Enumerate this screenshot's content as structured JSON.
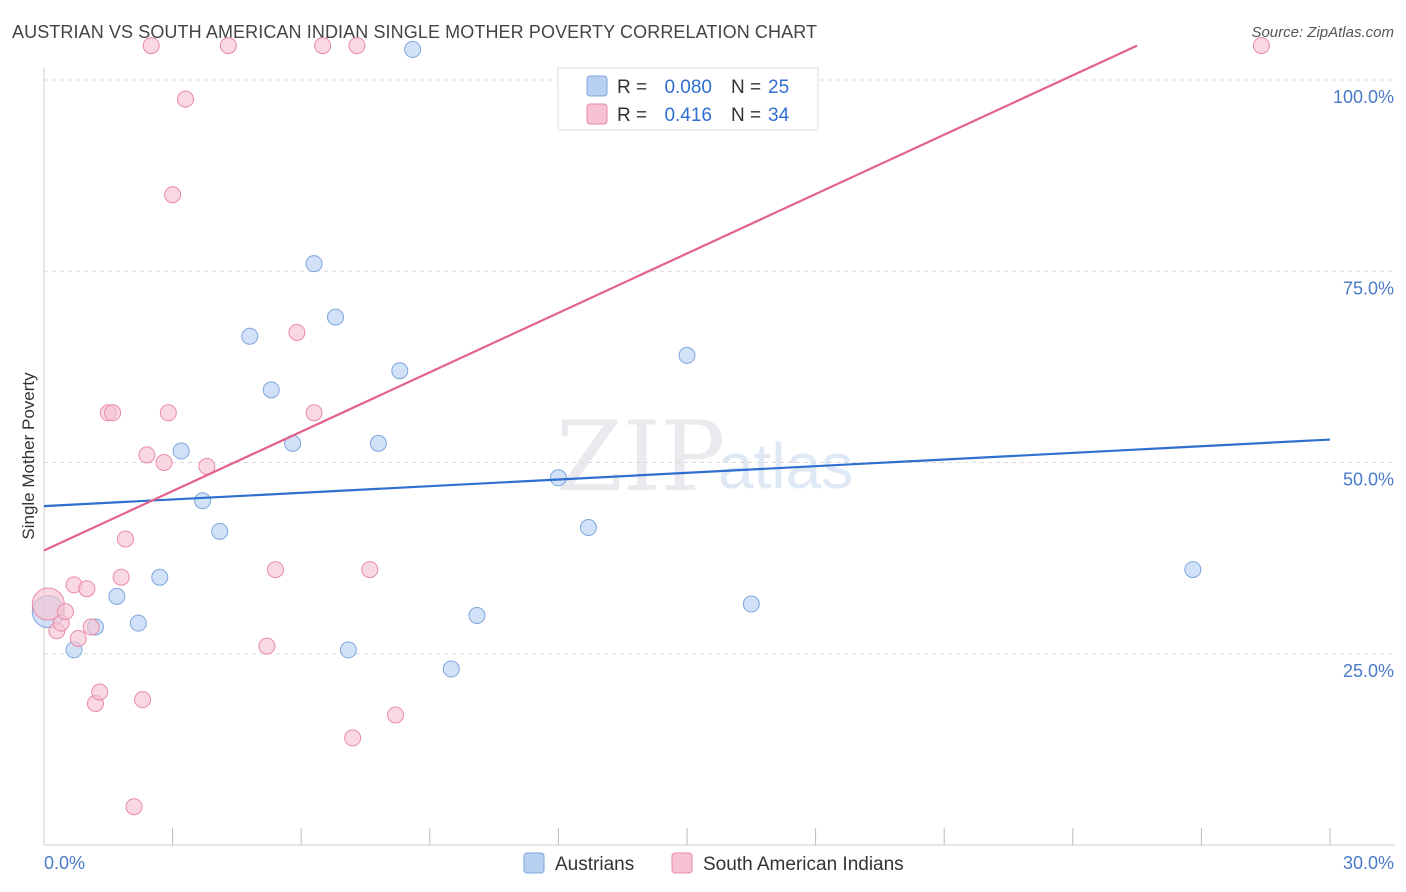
{
  "title": "AUSTRIAN VS SOUTH AMERICAN INDIAN SINGLE MOTHER POVERTY CORRELATION CHART",
  "source": "Source: ZipAtlas.com",
  "watermark": {
    "zip": "ZIP",
    "atlas": "atlas"
  },
  "colors": {
    "austrians_fill": "#b8d1f2",
    "austrians_stroke": "#7ea6de",
    "austrians_line": "#2e6fd0",
    "sai_fill": "#f7c3d2",
    "sai_stroke": "#e98aa8",
    "sai_line": "#e2628a",
    "axis_label": "#4a7ac8",
    "grid": "#d9d9d9"
  },
  "legend": {
    "r_label": "R =",
    "n_label": "N =",
    "rows": [
      {
        "r": "0.080",
        "n": "25"
      },
      {
        "r": "0.416",
        "n": "34"
      }
    ]
  },
  "chart_data": {
    "type": "scatter",
    "title": "AUSTRIAN VS SOUTH AMERICAN INDIAN SINGLE MOTHER POVERTY CORRELATION CHART",
    "xlabel": "",
    "ylabel": "Single Mother Poverty",
    "xlim": [
      0,
      30
    ],
    "ylim": [
      0,
      100
    ],
    "x_tick_labels": [
      "0.0%",
      "30.0%"
    ],
    "y_tick_values": [
      25,
      50,
      75,
      100
    ],
    "y_tick_labels": [
      "25.0%",
      "50.0%",
      "75.0%",
      "100.0%"
    ],
    "grid": "horizontal dashed",
    "legend_placement": "top-center",
    "series": [
      {
        "name": "Austrians",
        "r": 0.08,
        "n": 25,
        "trend": {
          "x": [
            0,
            30
          ],
          "y": [
            44.3,
            53.0
          ]
        },
        "points": [
          {
            "x": 0.1,
            "y": 30.5,
            "size": "large"
          },
          {
            "x": 0.7,
            "y": 25.5
          },
          {
            "x": 1.2,
            "y": 28.5
          },
          {
            "x": 1.7,
            "y": 32.5
          },
          {
            "x": 2.2,
            "y": 29.0
          },
          {
            "x": 2.7,
            "y": 35.0
          },
          {
            "x": 3.2,
            "y": 51.5
          },
          {
            "x": 3.7,
            "y": 45.0
          },
          {
            "x": 4.1,
            "y": 41.0
          },
          {
            "x": 4.8,
            "y": 66.5
          },
          {
            "x": 5.3,
            "y": 59.5
          },
          {
            "x": 5.8,
            "y": 52.5
          },
          {
            "x": 6.3,
            "y": 76.0
          },
          {
            "x": 6.8,
            "y": 69.0
          },
          {
            "x": 7.1,
            "y": 25.5
          },
          {
            "x": 7.8,
            "y": 52.5
          },
          {
            "x": 8.3,
            "y": 62.0
          },
          {
            "x": 8.6,
            "y": 104.0
          },
          {
            "x": 9.5,
            "y": 23.0
          },
          {
            "x": 10.1,
            "y": 30.0
          },
          {
            "x": 12.0,
            "y": 48.0
          },
          {
            "x": 12.7,
            "y": 41.5
          },
          {
            "x": 15.0,
            "y": 64.0
          },
          {
            "x": 16.5,
            "y": 31.5
          },
          {
            "x": 26.8,
            "y": 36.0
          }
        ]
      },
      {
        "name": "South American Indians",
        "r": 0.416,
        "n": 34,
        "trend": {
          "x": [
            0,
            25.5
          ],
          "y": [
            38.5,
            104.5
          ]
        },
        "points": [
          {
            "x": 0.1,
            "y": 31.5,
            "size": "large"
          },
          {
            "x": 0.3,
            "y": 28.0
          },
          {
            "x": 0.4,
            "y": 29.0
          },
          {
            "x": 0.5,
            "y": 30.5
          },
          {
            "x": 0.7,
            "y": 34.0
          },
          {
            "x": 0.8,
            "y": 27.0
          },
          {
            "x": 1.0,
            "y": 33.5
          },
          {
            "x": 1.1,
            "y": 28.5
          },
          {
            "x": 1.2,
            "y": 18.5
          },
          {
            "x": 1.3,
            "y": 20.0
          },
          {
            "x": 1.5,
            "y": 56.5
          },
          {
            "x": 1.6,
            "y": 56.5
          },
          {
            "x": 1.8,
            "y": 35.0
          },
          {
            "x": 1.9,
            "y": 40.0
          },
          {
            "x": 2.1,
            "y": 5.0
          },
          {
            "x": 2.3,
            "y": 19.0
          },
          {
            "x": 2.4,
            "y": 51.0
          },
          {
            "x": 2.5,
            "y": 104.5
          },
          {
            "x": 2.8,
            "y": 50.0
          },
          {
            "x": 2.9,
            "y": 56.5
          },
          {
            "x": 3.0,
            "y": 85.0
          },
          {
            "x": 3.3,
            "y": 97.5
          },
          {
            "x": 3.8,
            "y": 49.5
          },
          {
            "x": 4.3,
            "y": 104.5
          },
          {
            "x": 5.2,
            "y": 26.0
          },
          {
            "x": 5.4,
            "y": 36.0
          },
          {
            "x": 5.9,
            "y": 67.0
          },
          {
            "x": 6.3,
            "y": 56.5
          },
          {
            "x": 6.5,
            "y": 104.5
          },
          {
            "x": 7.2,
            "y": 14.0
          },
          {
            "x": 7.3,
            "y": 104.5
          },
          {
            "x": 7.6,
            "y": 36.0
          },
          {
            "x": 8.2,
            "y": 17.0
          },
          {
            "x": 28.4,
            "y": 104.5
          }
        ]
      }
    ]
  }
}
